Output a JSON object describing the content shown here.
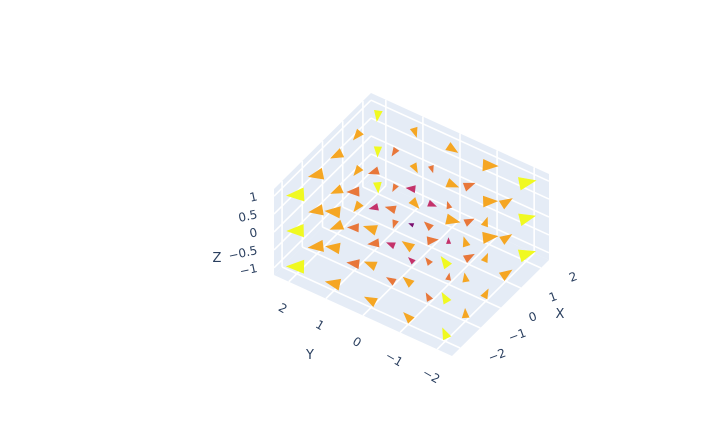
{
  "chart_data": {
    "type": "cone",
    "title": "",
    "axes": {
      "x": {
        "title": "X",
        "range": [
          -2.4,
          2.4
        ],
        "ticks": [
          2,
          1,
          0,
          -1,
          -2
        ],
        "tick_labels": [
          "2",
          "1",
          "0",
          "−1",
          "−2"
        ]
      },
      "y": {
        "title": "Y",
        "range": [
          -2.4,
          2.4
        ],
        "ticks": [
          2,
          1,
          0,
          -1,
          -2
        ],
        "tick_labels": [
          "2",
          "1",
          "0",
          "−1",
          "−2"
        ]
      },
      "z": {
        "title": "Z",
        "range": [
          -1.2,
          1.2
        ],
        "ticks": [
          1,
          0.5,
          0,
          -0.5,
          -1
        ],
        "tick_labels": [
          "1",
          "0.5",
          "0",
          "−0.5",
          "−1"
        ]
      }
    },
    "grid": true,
    "legend": "none",
    "grid_points": {
      "x": [
        -2,
        -1,
        0,
        1,
        2
      ],
      "y": [
        -2,
        -1,
        0,
        1,
        2
      ],
      "z": [
        -1,
        0,
        1
      ]
    },
    "colorscale": [
      "#7a0d6e",
      "#c4326a",
      "#e8773a",
      "#f5a623",
      "#f0f921"
    ]
  },
  "colors": {
    "scene_background": "#e5ecf6",
    "grid": "#ffffff",
    "text": "#2a3f5f"
  }
}
